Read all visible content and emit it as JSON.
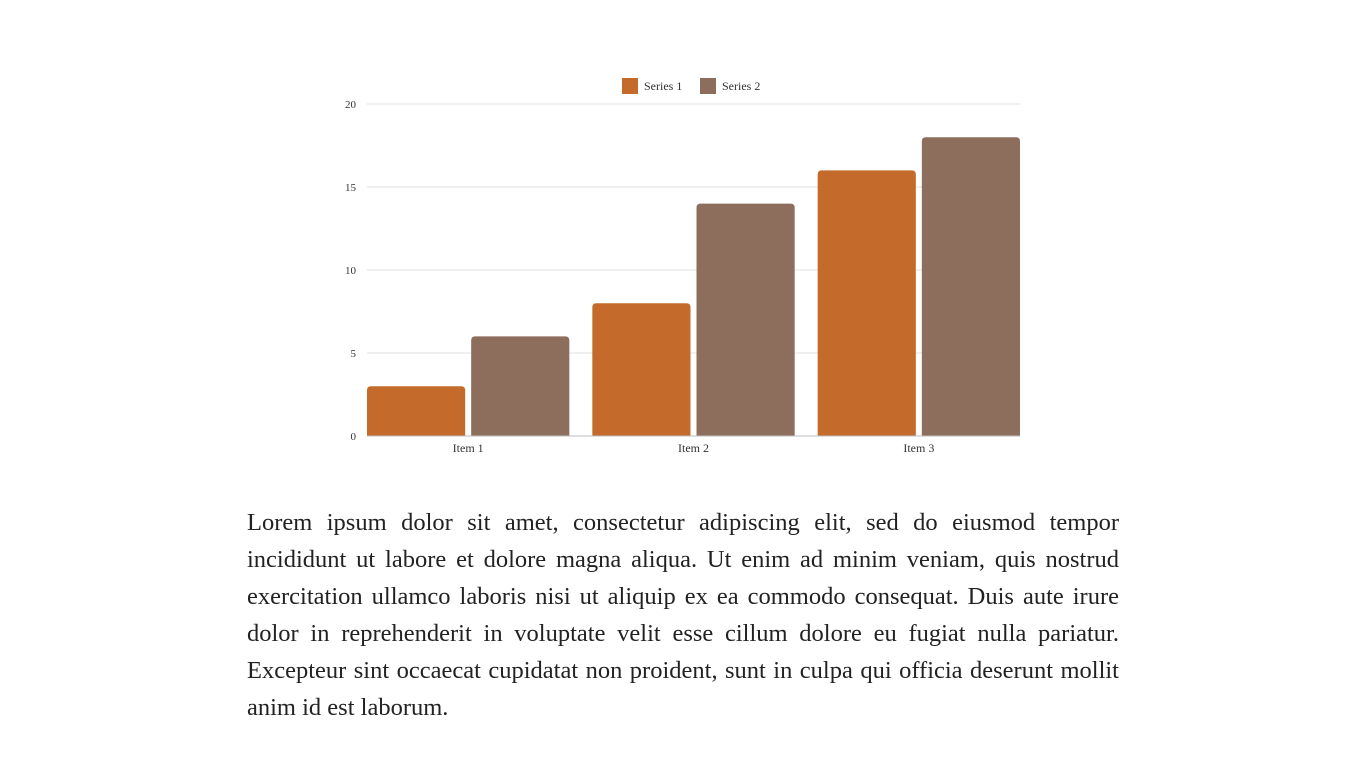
{
  "chart_data": {
    "type": "bar",
    "categories": [
      "Item 1",
      "Item 2",
      "Item 3"
    ],
    "series": [
      {
        "name": "Series 1",
        "values": [
          3,
          8,
          16
        ],
        "color": "#c46a2b"
      },
      {
        "name": "Series 2",
        "values": [
          6,
          14,
          18
        ],
        "color": "#8d6e5d"
      }
    ],
    "ylim": [
      0,
      20
    ],
    "yticks": [
      0,
      5,
      10,
      15,
      20
    ],
    "grid": true,
    "legend_position": "top-center",
    "title": "",
    "xlabel": "",
    "ylabel": ""
  },
  "body": {
    "paragraph": "Lorem ipsum dolor sit amet, consectetur adipiscing elit, sed do eiusmod tempor incididunt ut labore et dolore magna aliqua. Ut enim ad minim veniam, quis nostrud exercitation ullamco laboris nisi ut aliquip ex ea commodo consequat. Duis aute irure dolor in reprehenderit in voluptate velit esse cillum dolore eu fugiat nulla pariatur. Excepteur sint occaecat cupidatat non proident, sunt in culpa qui officia deserunt mollit anim id est laborum."
  }
}
